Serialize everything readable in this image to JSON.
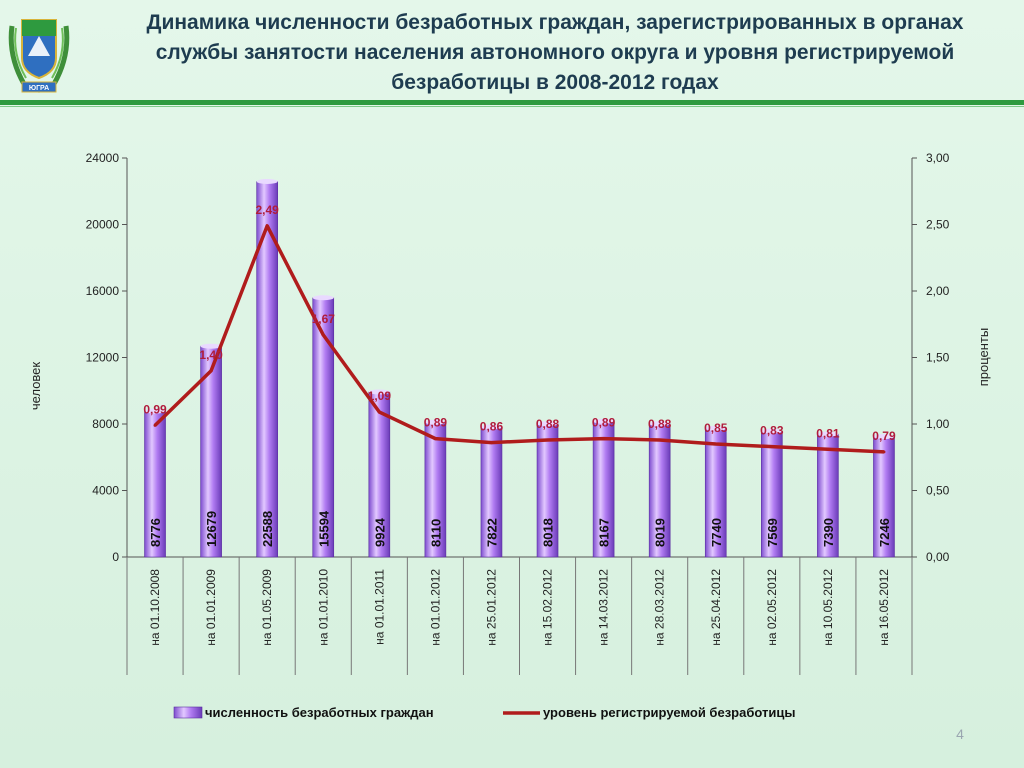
{
  "title": "Динамика численности безработных граждан, зарегистрированных в органах службы занятости населения автономного округа и уровня регистрируемой безработицы в 2008-2012 годах",
  "emblem_text": "ЮГРА",
  "page_number": "4",
  "colors": {
    "bar": "#b17cf2",
    "line": "#b01c1c",
    "rule": "#2e9a3f",
    "title": "#1e3c50"
  },
  "chart_data": {
    "type": "bar",
    "categories": [
      "на 01.10.2008",
      "на 01.01.2009",
      "на 01.05.2009",
      "на 01.01.2010",
      "на 01.01.2011",
      "на 01.01.2012",
      "на 25.01.2012",
      "на 15.02.2012",
      "на 14.03.2012",
      "на 28.03.2012",
      "на 25.04.2012",
      "на 02.05.2012",
      "на 10.05.2012",
      "на 16.05.2012"
    ],
    "series": [
      {
        "name": "численность безработных граждан",
        "type": "bar",
        "axis": "left",
        "values": [
          8776,
          12679,
          22588,
          15594,
          9924,
          8110,
          7822,
          8018,
          8167,
          8019,
          7740,
          7569,
          7390,
          7246
        ],
        "labels": [
          "8776",
          "12679",
          "22588",
          "15594",
          "9924",
          "8110",
          "7822",
          "8018",
          "8167",
          "8019",
          "7740",
          "7569",
          "7390",
          "7246"
        ]
      },
      {
        "name": "уровень регистрируемой безработицы",
        "type": "line",
        "axis": "right",
        "values": [
          0.99,
          1.4,
          2.49,
          1.67,
          1.09,
          0.89,
          0.86,
          0.88,
          0.89,
          0.88,
          0.85,
          0.83,
          0.81,
          0.79
        ],
        "labels": [
          "0,99",
          "1,40",
          "2,49",
          "1,67",
          "1,09",
          "0,89",
          "0,86",
          "0,88",
          "0,89",
          "0,88",
          "0,85",
          "0,83",
          "0,81",
          "0,79"
        ]
      }
    ],
    "ylabel": "человек",
    "ylim": [
      0,
      24000
    ],
    "yticks": [
      "0",
      "4000",
      "8000",
      "12000",
      "16000",
      "20000",
      "24000"
    ],
    "y2label": "проценты",
    "y2lim": [
      0,
      3
    ],
    "y2ticks": [
      "0,00",
      "0,50",
      "1,00",
      "1,50",
      "2,00",
      "2,50",
      "3,00"
    ],
    "legend_position": "bottom",
    "grid": false
  }
}
